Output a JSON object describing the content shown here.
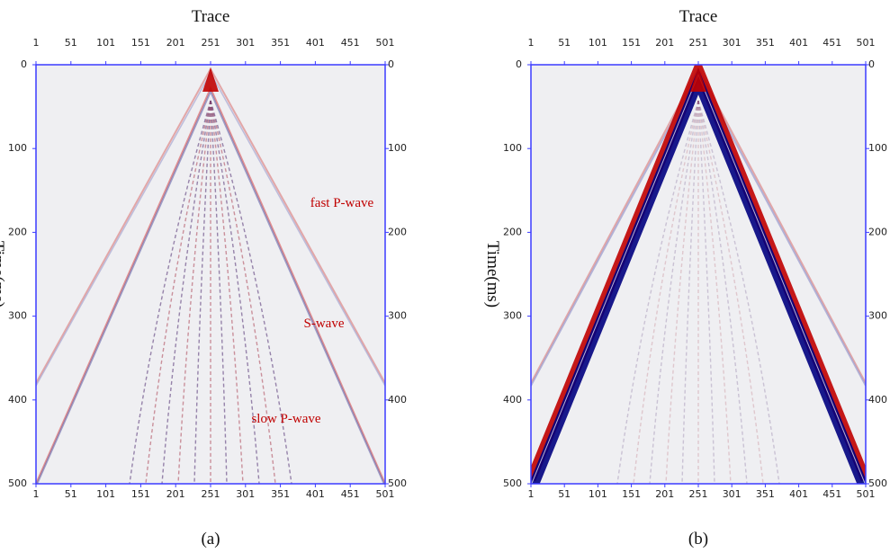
{
  "panels": [
    {
      "xlabel": "Trace",
      "ylabel": "Time(ms)",
      "xlim": [
        1,
        501
      ],
      "ylim": [
        0,
        500
      ],
      "xticks": [
        1,
        51,
        101,
        151,
        201,
        251,
        301,
        351,
        401,
        451,
        501
      ],
      "yticks": [
        0,
        100,
        200,
        300,
        400,
        500
      ],
      "annotations": [
        "fast P-wave",
        "S-wave",
        "slow P-wave"
      ],
      "caption": "(a)"
    },
    {
      "xlabel": "Trace",
      "ylabel": "Time(ms)",
      "xlim": [
        1,
        501
      ],
      "ylim": [
        0,
        500
      ],
      "xticks": [
        1,
        51,
        101,
        151,
        201,
        251,
        301,
        351,
        401,
        451,
        501
      ],
      "yticks": [
        0,
        100,
        200,
        300,
        400,
        500
      ],
      "caption": "(b)"
    }
  ]
}
